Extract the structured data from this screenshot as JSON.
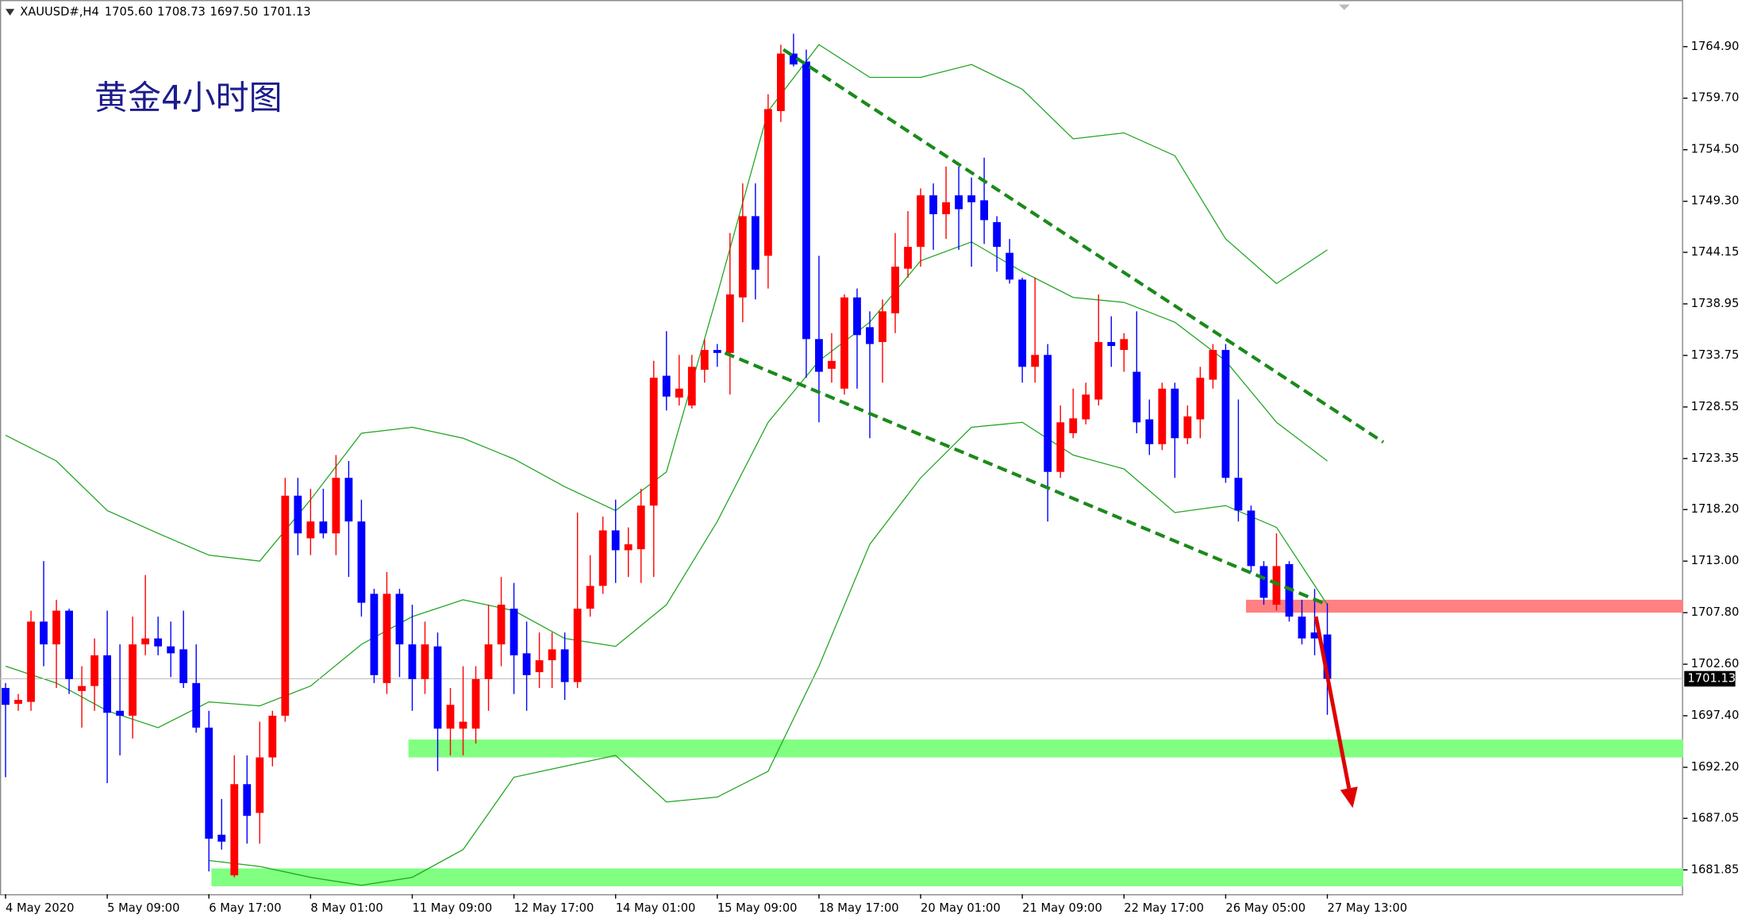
{
  "chart_data": {
    "type": "candlestick",
    "symbol": "XAUUSD#,H4",
    "last_bar_labels": [
      "1705.60",
      "1708.73",
      "1697.50",
      "1701.13"
    ],
    "title": "黄金4小时图",
    "categories": [
      "4 May 2020",
      null,
      null,
      null,
      null,
      null,
      null,
      null,
      "5 May 09:00",
      null,
      null,
      null,
      null,
      null,
      null,
      null,
      "6 May 17:00",
      null,
      null,
      null,
      null,
      null,
      null,
      null,
      "8 May 01:00",
      null,
      null,
      null,
      null,
      null,
      null,
      null,
      "11 May 09:00",
      null,
      null,
      null,
      null,
      null,
      null,
      null,
      "12 May 17:00",
      null,
      null,
      null,
      null,
      null,
      null,
      null,
      "14 May 01:00",
      null,
      null,
      null,
      null,
      null,
      null,
      null,
      "15 May 09:00",
      null,
      null,
      null,
      null,
      null,
      null,
      null,
      "18 May 17:00",
      null,
      null,
      null,
      null,
      null,
      null,
      null,
      "20 May 01:00",
      null,
      null,
      null,
      null,
      null,
      null,
      null,
      "21 May 09:00",
      null,
      null,
      null,
      null,
      null,
      null,
      null,
      "22 May 17:00",
      null,
      null,
      null,
      null,
      null,
      null,
      null,
      "26 May 05:00",
      null,
      null,
      null,
      null,
      null,
      null,
      null,
      "27 May 13:00"
    ],
    "open": [
      1700.2,
      1698.6,
      1698.8,
      1706.9,
      1704.6,
      1708.0,
      1699.9,
      1700.4,
      1703.5,
      1697.9,
      1697.4,
      1704.6,
      1705.2,
      1704.4,
      1704.1,
      1700.7,
      1696.2,
      1685.4,
      1681.3,
      1690.5,
      1687.6,
      1693.2,
      1697.4,
      1719.6,
      1715.3,
      1717.0,
      1715.8,
      1721.4,
      1717.0,
      1709.7,
      1700.7,
      1709.7,
      1704.6,
      1701.1,
      1704.4,
      1696.1,
      1696.1,
      1696.1,
      1701.1,
      1704.6,
      1708.2,
      1703.7,
      1701.8,
      1703.0,
      1704.1,
      1700.8,
      1708.2,
      1710.5,
      1716.1,
      1714.1,
      1714.2,
      1718.6,
      1731.7,
      1729.5,
      1728.7,
      1732.3,
      1734.3,
      1734.0,
      1739.6,
      1747.8,
      1743.8,
      1758.4,
      1764.2,
      1763.4,
      1735.4,
      1732.4,
      1730.4,
      1739.6,
      1736.6,
      1735.1,
      1738.0,
      1742.5,
      1744.7,
      1749.9,
      1748.0,
      1749.9,
      1749.9,
      1749.4,
      1747.2,
      1744.1,
      1741.4,
      1732.6,
      1733.8,
      1722.0,
      1725.9,
      1727.3,
      1729.3,
      1735.1,
      1734.3,
      1732.1,
      1727.3,
      1724.8,
      1730.4,
      1725.4,
      1727.3,
      1731.3,
      1734.3,
      1721.4,
      1718.1,
      1712.5,
      1708.6,
      1712.7,
      1707.4,
      1705.8,
      1705.6
    ],
    "high": [
      1700.7,
      1699.6,
      1708.0,
      1713.0,
      1709.1,
      1708.2,
      1702.4,
      1705.2,
      1708.0,
      1704.6,
      1707.4,
      1711.6,
      1707.4,
      1706.9,
      1708.0,
      1704.6,
      1697.9,
      1689.0,
      1693.4,
      1693.4,
      1696.8,
      1697.9,
      1721.4,
      1721.4,
      1720.3,
      1720.3,
      1723.7,
      1723.1,
      1719.2,
      1710.2,
      1711.9,
      1710.2,
      1708.6,
      1706.9,
      1705.8,
      1700.2,
      1702.4,
      1702.4,
      1708.6,
      1711.4,
      1710.8,
      1706.9,
      1705.8,
      1705.8,
      1705.8,
      1717.9,
      1713.6,
      1717.5,
      1719.2,
      1716.4,
      1720.3,
      1733.2,
      1736.2,
      1733.8,
      1733.8,
      1735.4,
      1734.9,
      1746.1,
      1751.1,
      1751.1,
      1760.1,
      1765.1,
      1766.2,
      1764.6,
      1743.8,
      1736.0,
      1739.9,
      1740.5,
      1738.2,
      1739.4,
      1746.1,
      1748.3,
      1750.6,
      1751.1,
      1752.8,
      1752.8,
      1751.7,
      1753.7,
      1747.8,
      1745.5,
      1741.6,
      1741.6,
      1734.9,
      1728.7,
      1730.4,
      1731.0,
      1739.9,
      1737.7,
      1736.0,
      1738.2,
      1729.3,
      1731.0,
      1731.0,
      1728.7,
      1732.6,
      1734.9,
      1734.9,
      1729.3,
      1718.6,
      1713.0,
      1715.8,
      1713.0,
      1709.1,
      1710.2,
      1708.73
    ],
    "low": [
      1691.2,
      1697.9,
      1697.9,
      1702.4,
      1700.2,
      1699.6,
      1696.2,
      1697.9,
      1690.6,
      1693.4,
      1695.1,
      1703.5,
      1703.5,
      1701.3,
      1700.2,
      1695.7,
      1681.7,
      1683.9,
      1681.1,
      1684.5,
      1684.5,
      1692.3,
      1696.8,
      1713.6,
      1713.6,
      1715.3,
      1713.6,
      1711.4,
      1707.4,
      1700.7,
      1699.6,
      1701.3,
      1697.9,
      1699.6,
      1691.8,
      1693.4,
      1693.4,
      1694.6,
      1697.9,
      1702.4,
      1699.6,
      1697.9,
      1700.2,
      1700.2,
      1699.0,
      1700.2,
      1707.4,
      1709.7,
      1710.8,
      1711.4,
      1710.8,
      1711.4,
      1728.2,
      1728.7,
      1728.4,
      1731.0,
      1732.6,
      1729.8,
      1737.1,
      1739.4,
      1740.5,
      1757.3,
      1762.9,
      1731.5,
      1727.0,
      1731.0,
      1729.8,
      1730.4,
      1725.4,
      1731.0,
      1736.0,
      1741.6,
      1742.7,
      1744.4,
      1745.5,
      1744.4,
      1742.7,
      1745.0,
      1742.2,
      1741.0,
      1731.0,
      1731.0,
      1717.0,
      1721.4,
      1725.4,
      1726.8,
      1728.7,
      1732.6,
      1732.1,
      1725.9,
      1723.7,
      1724.2,
      1721.4,
      1724.8,
      1725.4,
      1730.4,
      1720.9,
      1717.0,
      1711.9,
      1708.6,
      1708.0,
      1706.9,
      1704.6,
      1703.5,
      1697.5
    ],
    "close": [
      1698.5,
      1699.0,
      1706.9,
      1704.6,
      1708.0,
      1701.1,
      1700.4,
      1703.5,
      1697.7,
      1697.4,
      1704.6,
      1705.2,
      1704.4,
      1703.7,
      1700.7,
      1696.2,
      1685.0,
      1684.7,
      1690.5,
      1687.3,
      1693.2,
      1697.4,
      1719.6,
      1715.8,
      1717.0,
      1715.8,
      1721.4,
      1717.0,
      1708.8,
      1701.5,
      1709.7,
      1704.6,
      1701.1,
      1704.6,
      1696.1,
      1698.5,
      1696.8,
      1701.1,
      1704.6,
      1708.6,
      1703.5,
      1701.5,
      1703.0,
      1704.1,
      1700.8,
      1708.2,
      1710.5,
      1716.1,
      1714.1,
      1714.7,
      1718.6,
      1731.5,
      1729.6,
      1730.4,
      1732.6,
      1734.3,
      1734.0,
      1739.9,
      1747.8,
      1742.4,
      1758.6,
      1764.2,
      1763.1,
      1735.4,
      1732.1,
      1733.2,
      1739.6,
      1735.8,
      1734.9,
      1738.2,
      1742.7,
      1744.7,
      1749.9,
      1748.0,
      1749.2,
      1748.5,
      1749.2,
      1747.4,
      1744.7,
      1741.4,
      1732.6,
      1733.8,
      1722.0,
      1727.0,
      1727.4,
      1729.8,
      1735.1,
      1734.7,
      1735.4,
      1727.0,
      1724.8,
      1730.4,
      1725.4,
      1727.6,
      1731.5,
      1734.3,
      1721.4,
      1718.1,
      1712.5,
      1709.3,
      1712.5,
      1707.4,
      1705.2,
      1705.2,
      1701.13
    ],
    "up_color": "#ff0000",
    "down_color": "#0000ff",
    "bands": [
      {
        "x": [
          0,
          4,
          8,
          12,
          16,
          20,
          24,
          28,
          32,
          36,
          40,
          44,
          48,
          52,
          56,
          60,
          64,
          68,
          72,
          76,
          80,
          84,
          88,
          92,
          96,
          100,
          104
        ],
        "values": [
          1725.7,
          1723.1,
          1718.1,
          1715.8,
          1713.6,
          1713.0,
          1719.2,
          1725.9,
          1726.5,
          1725.4,
          1723.3,
          1720.5,
          1718.1,
          1722.0,
          1739.9,
          1758.4,
          1765.1,
          1761.8,
          1761.8,
          1763.1,
          1760.6,
          1755.6,
          1756.2,
          1753.9,
          1745.5,
          1741.0,
          1744.4
        ],
        "color": "#1fa51f"
      },
      {
        "x": [
          0,
          4,
          8,
          12,
          16,
          20,
          24,
          28,
          32,
          36,
          40,
          44,
          48,
          52,
          56,
          60,
          64,
          68,
          72,
          76,
          80,
          84,
          88,
          92,
          96,
          100,
          104
        ],
        "values": [
          1702.4,
          1700.7,
          1697.9,
          1696.2,
          1698.8,
          1698.4,
          1700.4,
          1704.6,
          1707.4,
          1709.1,
          1708.0,
          1705.2,
          1704.4,
          1708.6,
          1717.0,
          1727.0,
          1733.2,
          1737.1,
          1743.3,
          1745.2,
          1742.2,
          1739.6,
          1739.1,
          1737.1,
          1733.2,
          1727.0,
          1723.1
        ],
        "color": "#1fa51f"
      },
      {
        "x": [
          16,
          20,
          24,
          28,
          32,
          36,
          40,
          44,
          48,
          52,
          56,
          60,
          64,
          68,
          72,
          76,
          80,
          84,
          88,
          92,
          96,
          100,
          104
        ],
        "values": [
          1682.8,
          1682.2,
          1681.1,
          1680.3,
          1681.1,
          1683.9,
          1691.2,
          1692.3,
          1693.4,
          1688.7,
          1689.2,
          1691.8,
          1702.4,
          1714.7,
          1721.4,
          1726.5,
          1727.0,
          1723.7,
          1722.3,
          1717.9,
          1718.6,
          1716.4,
          1708.6
        ],
        "color": "#1fa51f"
      }
    ],
    "trendlines": [
      {
        "x": [
          61.2,
          108.4
        ],
        "values": [
          1764.6,
          1725.0
        ],
        "color": "#1a8a1a"
      },
      {
        "x": [
          56.6,
          104.0
        ],
        "values": [
          1734.0,
          1708.6
        ],
        "color": "#1a8a1a"
      }
    ],
    "zones": [
      {
        "x_start": 97.6,
        "low": 1707.8,
        "high": 1709.1,
        "color": "#ff8080"
      },
      {
        "x_start": 31.7,
        "low": 1693.2,
        "high": 1695.0,
        "color": "#80ff80"
      },
      {
        "x_start": 16.2,
        "low": 1680.2,
        "high": 1682.0,
        "color": "#80ff80"
      }
    ],
    "arrow": {
      "x": [
        103.1,
        106.0
      ],
      "values": [
        1707.4,
        1688.1
      ],
      "color": "#e00000"
    },
    "ylim": [
      1679.4,
      1769.6
    ],
    "yticks": [
      {
        "value": 1764.9,
        "label": "1764.90"
      },
      {
        "value": 1759.7,
        "label": "1759.70"
      },
      {
        "value": 1754.5,
        "label": "1754.50"
      },
      {
        "value": 1749.3,
        "label": "1749.30"
      },
      {
        "value": 1744.15,
        "label": "1744.15"
      },
      {
        "value": 1738.95,
        "label": "1738.95"
      },
      {
        "value": 1733.75,
        "label": "1733.75"
      },
      {
        "value": 1728.55,
        "label": "1728.55"
      },
      {
        "value": 1723.35,
        "label": "1723.35"
      },
      {
        "value": 1718.2,
        "label": "1718.20"
      },
      {
        "value": 1713.0,
        "label": "1713.00"
      },
      {
        "value": 1707.8,
        "label": "1707.80"
      },
      {
        "value": 1702.6,
        "label": "1702.60"
      },
      {
        "value": 1697.4,
        "label": "1697.40"
      },
      {
        "value": 1692.2,
        "label": "1692.20"
      },
      {
        "value": 1687.05,
        "label": "1687.05"
      },
      {
        "value": 1681.85,
        "label": "1681.85"
      }
    ],
    "grid": false
  }
}
